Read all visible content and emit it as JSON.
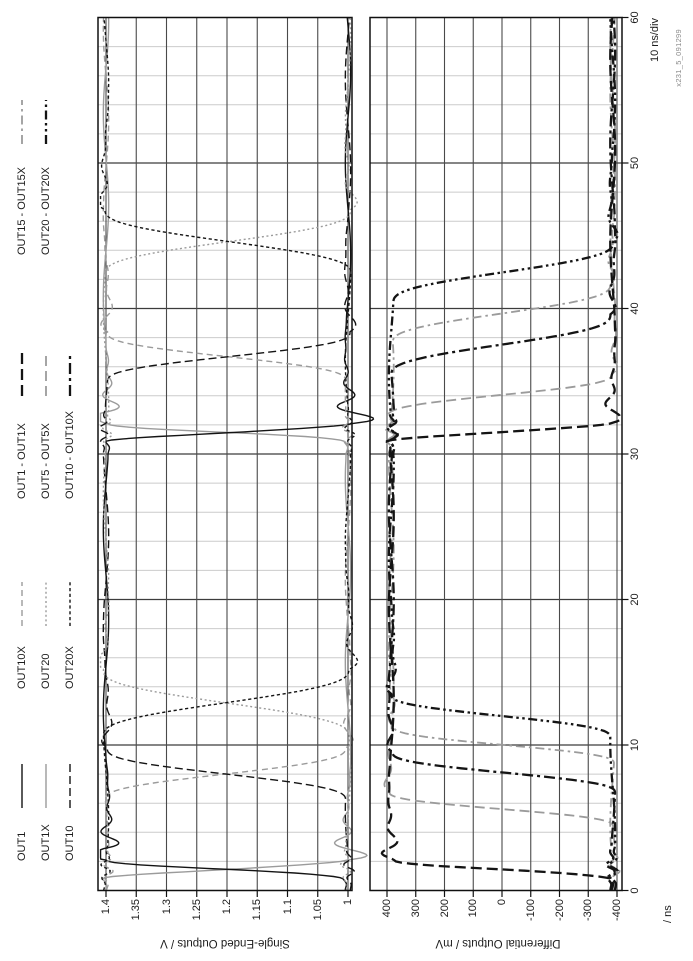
{
  "watermark": "x231_5_091299",
  "chart_data": {
    "type": "line",
    "title": "",
    "x": {
      "label": "/ ns",
      "scale_label": "10 ns/div",
      "min": 0,
      "max": 60,
      "major_step": 10,
      "minor_step": 2,
      "tick_labels": [
        "0",
        "10",
        "20",
        "30",
        "40",
        "50",
        "60"
      ]
    },
    "panels": [
      {
        "name": "single-ended",
        "ylabel": "Single-Ended Outputs / V",
        "yticks": [
          1.4,
          1.35,
          1.3,
          1.25,
          1.2,
          1.15,
          1.1,
          1.05,
          1.0
        ],
        "ytick_labels": [
          "1.4",
          "1.35",
          "1.3",
          "1.25",
          "1.2",
          "1.15",
          "1.1",
          "1.05",
          "1"
        ],
        "levels": {
          "low": 1.0,
          "high": 1.4
        }
      },
      {
        "name": "differential",
        "ylabel": "Differential Outputs / mV",
        "yticks": [
          400,
          300,
          200,
          100,
          0,
          -100,
          -200,
          -300,
          -400
        ],
        "ytick_labels": [
          "400",
          "300",
          "200",
          "100",
          "0",
          "-100",
          "-200",
          "-300",
          "-400"
        ],
        "levels": {
          "low": -385,
          "high": 385
        }
      }
    ],
    "series": [
      {
        "name": "OUT1X",
        "panel": "single-ended",
        "color": "#9b9b9b",
        "dash": "",
        "width": 1.4,
        "start": "high",
        "edges": [
          [
            0.8,
            1.3
          ],
          [
            30.85,
            1.25
          ]
        ],
        "ring": {
          "amp": 0.045,
          "freq": 0.62,
          "tau": 1.3
        },
        "shape": "fast"
      },
      {
        "name": "OUT1",
        "panel": "single-ended",
        "color": "#141414",
        "dash": "",
        "width": 1.4,
        "start": "low",
        "edges": [
          [
            0.8,
            1.3
          ],
          [
            30.85,
            1.25
          ]
        ],
        "ring": {
          "amp": 0.05,
          "freq": 0.62,
          "tau": 1.3
        },
        "shape": "fast"
      },
      {
        "name": "OUT10X",
        "panel": "single-ended",
        "color": "#9b9b9b",
        "dash": "6,4",
        "width": 1.4,
        "start": "high",
        "edges": [
          [
            6.2,
            3.6
          ],
          [
            35.0,
            3.4
          ]
        ],
        "ring": {
          "amp": 0.016,
          "freq": 0.42,
          "tau": 1.8
        },
        "shape": "slow"
      },
      {
        "name": "OUT10",
        "panel": "single-ended",
        "color": "#141414",
        "dash": "8,4",
        "width": 1.4,
        "start": "low",
        "edges": [
          [
            6.2,
            3.6
          ],
          [
            35.0,
            3.4
          ]
        ],
        "ring": {
          "amp": 0.014,
          "freq": 0.42,
          "tau": 1.8
        },
        "shape": "slow"
      },
      {
        "name": "OUT20",
        "panel": "single-ended",
        "color": "#9b9b9b",
        "dash": "2,2.6",
        "width": 1.4,
        "start": "low",
        "edges": [
          [
            10.6,
            4.6
          ],
          [
            42.4,
            4.4
          ]
        ],
        "ring": {
          "amp": 0.016,
          "freq": 0.4,
          "tau": 1.8
        },
        "shape": "slow"
      },
      {
        "name": "OUT20X",
        "panel": "single-ended",
        "color": "#141414",
        "dash": "3.2,2.6",
        "width": 1.4,
        "start": "high",
        "edges": [
          [
            10.6,
            4.6
          ],
          [
            42.4,
            4.4
          ]
        ],
        "ring": {
          "amp": 0.018,
          "freq": 0.4,
          "tau": 1.8
        },
        "shape": "slow"
      },
      {
        "name": "OUT5 - OUT5X",
        "panel": "differential",
        "color": "#9b9b9b",
        "dash": "10,5",
        "width": 1.8,
        "start": "low",
        "edges": [
          [
            4.4,
            2.4
          ],
          [
            32.6,
            2.9
          ]
        ],
        "ring": {
          "amp": 22,
          "freq": 0.45,
          "tau": 1.6
        },
        "shape": "slow"
      },
      {
        "name": "OUT15 - OUT15X",
        "panel": "differential",
        "color": "#9b9b9b",
        "dash": "9,4,2.5,4",
        "width": 1.8,
        "start": "low",
        "edges": [
          [
            8.7,
            2.6
          ],
          [
            37.6,
            4.1
          ]
        ],
        "ring": {
          "amp": 22,
          "freq": 0.45,
          "tau": 1.6
        },
        "shape": "slow"
      },
      {
        "name": "OUT10 - OUT10X",
        "panel": "differential",
        "color": "#141414",
        "dash": "11,4,3,4",
        "width": 2.3,
        "start": "low",
        "edges": [
          [
            6.7,
            2.8
          ],
          [
            35.4,
            4.2
          ]
        ],
        "ring": {
          "amp": 22,
          "freq": 0.45,
          "tau": 1.6
        },
        "shape": "slow"
      },
      {
        "name": "OUT20 - OUT20X",
        "panel": "differential",
        "color": "#141414",
        "dash": "9,3.5,2.5,3.5,2.5,3.5",
        "width": 2.3,
        "start": "low",
        "edges": [
          [
            10.5,
            3.0
          ],
          [
            40.4,
            4.2
          ]
        ],
        "ring": {
          "amp": 26,
          "freq": 0.42,
          "tau": 1.6
        },
        "shape": "slow"
      },
      {
        "name": "OUT1 - OUT1X",
        "panel": "differential",
        "color": "#141414",
        "dash": "11,5",
        "width": 2.3,
        "start": "low",
        "edges": [
          [
            0.75,
            1.35
          ],
          [
            30.85,
            1.3
          ]
        ],
        "ring": {
          "amp": 50,
          "freq": 0.55,
          "tau": 1.4
        },
        "shape": "fast"
      }
    ],
    "legend": {
      "groups": [
        {
          "items": [
            "OUT1",
            "OUT1X",
            "OUT10"
          ]
        },
        {
          "items": [
            "OUT10X",
            "OUT20",
            "OUT20X"
          ]
        },
        {
          "items": [
            "OUT1 - OUT1X",
            "OUT5 - OUT5X",
            "OUT10 - OUT10X"
          ]
        },
        {
          "items": [
            "OUT15 - OUT15X",
            "OUT20 - OUT20X"
          ]
        }
      ]
    }
  }
}
